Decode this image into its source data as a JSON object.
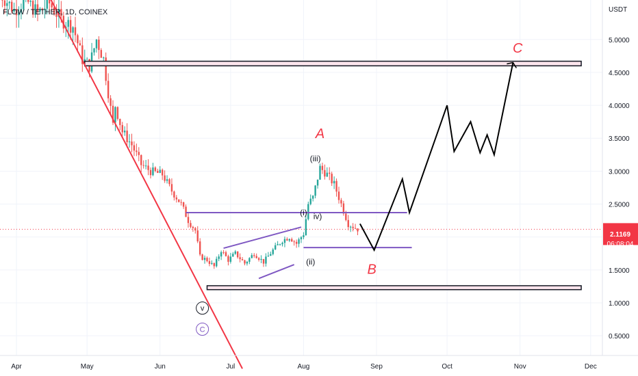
{
  "chart_data": {
    "type": "candlestick",
    "title": "FLOW / TETHER, 1D, COINEX",
    "currency": "USDT",
    "last_price": "2.1169",
    "countdown": "06:08:04",
    "ylim": [
      0.2,
      5.6
    ],
    "yticks": [
      "5.0000",
      "4.5000",
      "4.0000",
      "3.5000",
      "3.0000",
      "2.5000",
      "2.0000",
      "1.5000",
      "1.0000",
      "0.5000"
    ],
    "ytick_values": [
      5.0,
      4.5,
      4.0,
      3.5,
      3.0,
      2.5,
      2.0,
      1.5,
      1.0,
      0.5
    ],
    "xlim": [
      "2022-03-25",
      "2022-12-06"
    ],
    "xticks": [
      {
        "label": "Apr",
        "date": "2022-04-01"
      },
      {
        "label": "May",
        "date": "2022-05-01"
      },
      {
        "label": "Jun",
        "date": "2022-06-01"
      },
      {
        "label": "Jul",
        "date": "2022-07-01"
      },
      {
        "label": "Aug",
        "date": "2022-08-01"
      },
      {
        "label": "Sep",
        "date": "2022-09-01"
      },
      {
        "label": "Oct",
        "date": "2022-10-01"
      },
      {
        "label": "Nov",
        "date": "2022-11-01"
      },
      {
        "label": "Dec",
        "date": "2022-12-01"
      }
    ],
    "colors": {
      "up": "#26a69a",
      "down": "#ef5350",
      "trend": "#f23645",
      "purple": "#7e57c2",
      "zone_fill": "#fce4ec",
      "price_tag": "#f23645"
    },
    "price_path": [
      [
        "2022-03-25",
        5.7
      ],
      [
        "2022-03-31",
        5.45
      ],
      [
        "2022-04-05",
        5.6
      ],
      [
        "2022-04-10",
        5.4
      ],
      [
        "2022-04-15",
        5.55
      ],
      [
        "2022-04-20",
        5.3
      ],
      [
        "2022-04-25",
        5.2
      ],
      [
        "2022-04-29",
        4.7
      ],
      [
        "2022-05-02",
        4.6
      ],
      [
        "2022-05-05",
        5.0
      ],
      [
        "2022-05-08",
        4.7
      ],
      [
        "2022-05-10",
        4.2
      ],
      [
        "2022-05-12",
        3.7
      ],
      [
        "2022-05-13",
        4.0
      ],
      [
        "2022-05-16",
        3.6
      ],
      [
        "2022-05-20",
        3.4
      ],
      [
        "2022-05-24",
        3.1
      ],
      [
        "2022-05-28",
        3.0
      ],
      [
        "2022-06-02",
        2.95
      ],
      [
        "2022-06-06",
        2.7
      ],
      [
        "2022-06-10",
        2.5
      ],
      [
        "2022-06-13",
        2.25
      ],
      [
        "2022-06-16",
        2.1
      ],
      [
        "2022-06-18",
        1.7
      ],
      [
        "2022-06-21",
        1.65
      ],
      [
        "2022-06-24",
        1.55
      ],
      [
        "2022-06-27",
        1.8
      ],
      [
        "2022-06-30",
        1.65
      ],
      [
        "2022-07-03",
        1.75
      ],
      [
        "2022-07-07",
        1.6
      ],
      [
        "2022-07-11",
        1.75
      ],
      [
        "2022-07-15",
        1.62
      ],
      [
        "2022-07-19",
        1.8
      ],
      [
        "2022-07-23",
        1.95
      ],
      [
        "2022-07-26",
        2.0
      ],
      [
        "2022-07-29",
        1.9
      ],
      [
        "2022-08-01",
        2.05
      ],
      [
        "2022-08-03",
        2.5
      ],
      [
        "2022-08-05",
        2.6
      ],
      [
        "2022-08-08",
        3.05
      ],
      [
        "2022-08-11",
        2.95
      ],
      [
        "2022-08-14",
        2.8
      ],
      [
        "2022-08-17",
        2.5
      ],
      [
        "2022-08-20",
        2.2
      ],
      [
        "2022-08-24",
        2.12
      ]
    ],
    "resistance_zone": {
      "from": "2022-04-30",
      "to": "2022-11-27",
      "low": 4.6,
      "high": 4.67
    },
    "support_zone": {
      "from": "2022-06-21",
      "to": "2022-11-27",
      "low": 1.2,
      "high": 1.26
    },
    "level_upper": {
      "from": "2022-06-12",
      "to": "2022-09-14",
      "price": 2.37
    },
    "level_lower": {
      "from": "2022-08-01",
      "to": "2022-09-16",
      "price": 1.84
    },
    "trendline": {
      "from": [
        "2022-04-07",
        6.2
      ],
      "to": [
        "2022-07-06",
        0.0
      ]
    },
    "wedge_upper": {
      "from": [
        "2022-06-28",
        1.83
      ],
      "to": [
        "2022-07-31",
        2.15
      ]
    },
    "wedge_lower": {
      "from": [
        "2022-07-13",
        1.37
      ],
      "to": [
        "2022-07-28",
        1.58
      ]
    },
    "projection": [
      [
        "2022-08-25",
        2.2
      ],
      [
        "2022-08-31",
        1.8
      ],
      [
        "2022-09-12",
        2.88
      ],
      [
        "2022-09-15",
        2.37
      ],
      [
        "2022-10-01",
        4.0
      ],
      [
        "2022-10-04",
        3.3
      ],
      [
        "2022-10-11",
        3.75
      ],
      [
        "2022-10-15",
        3.28
      ],
      [
        "2022-10-18",
        3.55
      ],
      [
        "2022-10-21",
        3.25
      ],
      [
        "2022-10-29",
        4.65
      ]
    ],
    "projection_arrow_tip": [
      "2022-10-29",
      4.65
    ],
    "wave_labels": [
      {
        "text": "(i)",
        "date": "2022-08-01",
        "price": 2.33,
        "style": "wave"
      },
      {
        "text": "(ii)",
        "date": "2022-08-04",
        "price": 1.58,
        "style": "wave"
      },
      {
        "text": "(iii)",
        "date": "2022-08-06",
        "price": 3.15,
        "style": "wave"
      },
      {
        "text": "iv)",
        "date": "2022-08-07",
        "price": 2.27,
        "style": "wave"
      },
      {
        "text": "A",
        "date": "2022-08-08",
        "price": 3.5,
        "style": "big"
      },
      {
        "text": "B",
        "date": "2022-08-30",
        "price": 1.44,
        "style": "big"
      },
      {
        "text": "C",
        "date": "2022-10-31",
        "price": 4.8,
        "style": "big"
      }
    ],
    "circle_labels": [
      {
        "text": "v",
        "date": "2022-06-19",
        "price": 0.92,
        "color": "#131722"
      },
      {
        "text": "C",
        "date": "2022-06-19",
        "price": 0.6,
        "color": "#7e57c2"
      }
    ]
  }
}
